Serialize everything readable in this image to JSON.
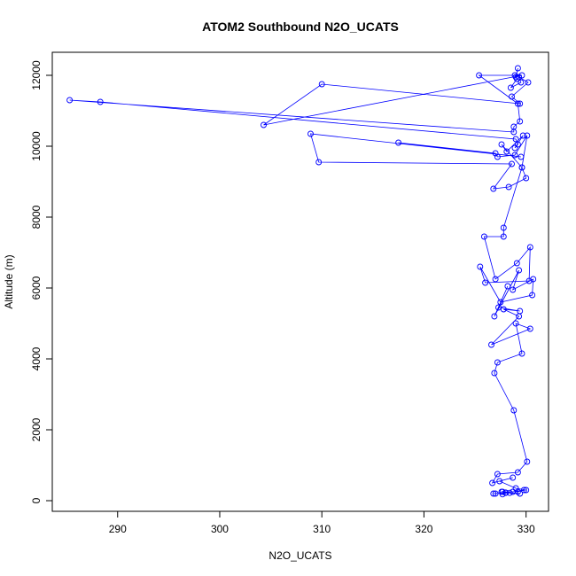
{
  "chart_data": {
    "type": "line",
    "title": "ATOM2 Southbound N2O_UCATS",
    "xlabel": "N2O_UCATS",
    "ylabel": "Altitude (m)",
    "xlim": [
      283.6,
      332.2
    ],
    "ylim": [
      -300,
      12650
    ],
    "xticks": [
      290,
      300,
      310,
      320,
      330
    ],
    "yticks": [
      0,
      2000,
      4000,
      6000,
      8000,
      10000,
      12000
    ],
    "series_color": "#0000ff",
    "marker": "open-circle",
    "grid": false,
    "series": [
      {
        "x": [
          329.2,
          329.0,
          328.9,
          329.1,
          328.5,
          329.5,
          329.3,
          330.2,
          328.6,
          329.4,
          310.0,
          304.3,
          329.6,
          325.4,
          329.2,
          329.4,
          328.8,
          328.8,
          285.3,
          288.3,
          329.0,
          329.2,
          328.9,
          329.7,
          328.1,
          327.6,
          329.6,
          330.1,
          328.9,
          327.2,
          327.0,
          317.5,
          329.5,
          308.9,
          309.7,
          328.6,
          326.8,
          328.3,
          330.0,
          329.6,
          327.8,
          327.8,
          325.9,
          327.0,
          329.1,
          330.4,
          330.3,
          326.0,
          325.5,
          327.5,
          330.6,
          330.7,
          328.7,
          329.3,
          326.9,
          328.2,
          327.3,
          329.4,
          327.8,
          329.3,
          326.6,
          330.4,
          329.0,
          329.6,
          327.2,
          326.9,
          328.8,
          330.1,
          329.2,
          327.2,
          326.7,
          328.7,
          327.4,
          329.0,
          330.0,
          328.7,
          329.8,
          329.2,
          327.7,
          328.0,
          327.0,
          326.8,
          328.4,
          329.4,
          327.6,
          328.0,
          327.7
        ],
        "y": [
          12200,
          11950,
          12000,
          11900,
          11650,
          11800,
          11950,
          11800,
          11400,
          11200,
          11750,
          10600,
          12000,
          12000,
          11200,
          10700,
          10550,
          10400,
          11300,
          11250,
          10200,
          10050,
          9950,
          10300,
          9850,
          10050,
          9400,
          10300,
          9750,
          9700,
          9800,
          10100,
          9700,
          10350,
          9550,
          9500,
          8800,
          8850,
          9100,
          9400,
          7700,
          7450,
          7450,
          6250,
          6700,
          7150,
          6200,
          6150,
          6600,
          5600,
          5800,
          6250,
          5950,
          6500,
          5200,
          6050,
          5450,
          5350,
          5400,
          5200,
          4400,
          4850,
          5000,
          4150,
          3900,
          3600,
          2550,
          1100,
          800,
          750,
          500,
          650,
          550,
          350,
          300,
          250,
          300,
          250,
          250,
          220,
          200,
          200,
          220,
          200,
          250,
          230,
          180
        ]
      }
    ]
  }
}
